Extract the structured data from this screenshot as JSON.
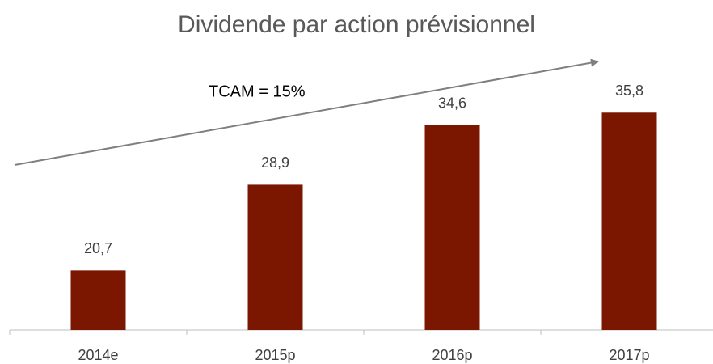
{
  "chart_data": {
    "type": "bar",
    "title": "Dividende par action prévisionnel",
    "annotation": "TCAM = 15%",
    "categories": [
      "2014e",
      "2015p",
      "2016p",
      "2017p"
    ],
    "values": [
      20.7,
      28.9,
      34.6,
      35.8
    ],
    "value_labels": [
      "20,7",
      "28,9",
      "34,6",
      "35,8"
    ],
    "color": "#7b1700",
    "ylim": [
      15,
      40
    ]
  }
}
